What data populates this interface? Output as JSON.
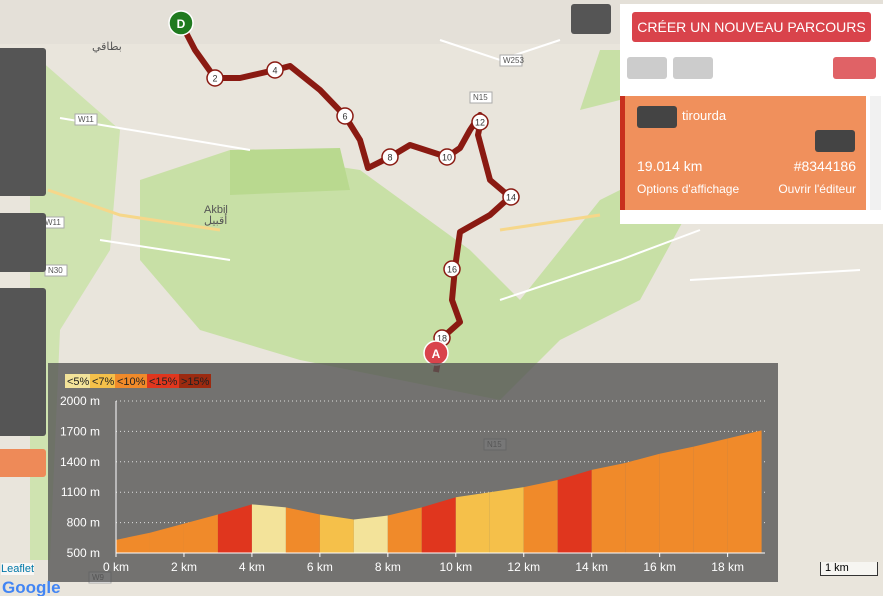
{
  "header": {
    "create_button": "CRÉER UN NOUVEAU PARCOURS"
  },
  "route_card": {
    "name": "tirourda",
    "distance": "19.014 km",
    "id": "#8344186",
    "options": "Options d'affichage",
    "editor": "Ouvrir l'éditeur"
  },
  "map": {
    "start": "D",
    "end": "A",
    "km_markers": [
      "2",
      "4",
      "6",
      "8",
      "10",
      "12",
      "14",
      "16",
      "18"
    ],
    "labels": [
      "Akbil",
      "أقبيل",
      "بطاقي",
      "W11",
      "W11",
      "N15",
      "N15",
      "W253",
      "N30",
      "W9"
    ],
    "scale": "1 km",
    "leaflet": "Leaflet",
    "google": "Google"
  },
  "chart_data": {
    "type": "area",
    "x": [
      0,
      1,
      2,
      3,
      4,
      5,
      6,
      7,
      8,
      9,
      10,
      11,
      12,
      13,
      14,
      15,
      16,
      17,
      18,
      19
    ],
    "values": [
      630,
      700,
      790,
      880,
      980,
      950,
      880,
      830,
      870,
      950,
      1050,
      1100,
      1150,
      1220,
      1320,
      1390,
      1480,
      1550,
      1630,
      1710
    ],
    "xlim": [
      0,
      19.1
    ],
    "ylim": [
      500,
      2000
    ],
    "xticks": [
      {
        "value": 0,
        "label": "0 km"
      },
      {
        "value": 2,
        "label": "2 km"
      },
      {
        "value": 4,
        "label": "4 km"
      },
      {
        "value": 6,
        "label": "6 km"
      },
      {
        "value": 8,
        "label": "8 km"
      },
      {
        "value": 10,
        "label": "10 km"
      },
      {
        "value": 12,
        "label": "12 km"
      },
      {
        "value": 14,
        "label": "14 km"
      },
      {
        "value": 16,
        "label": "16 km"
      },
      {
        "value": 18,
        "label": "18 km"
      }
    ],
    "yticks": [
      {
        "value": 500,
        "label": "500 m"
      },
      {
        "value": 800,
        "label": "800 m"
      },
      {
        "value": 1100,
        "label": "1100 m"
      },
      {
        "value": 1400,
        "label": "1400 m"
      },
      {
        "value": 1700,
        "label": "1700 m"
      },
      {
        "value": 2000,
        "label": "2000 m"
      }
    ],
    "grid": true,
    "slope_legend": [
      {
        "value": 5,
        "label": "<5%",
        "color": "#f3e39a"
      },
      {
        "value": 7,
        "label": "<7%",
        "color": "#f5c04a"
      },
      {
        "value": 10,
        "label": "<10%",
        "color": "#f08a2a"
      },
      {
        "value": 15,
        "label": "<15%",
        "color": "#e0361e"
      },
      {
        "value": 100,
        "label": ">15%",
        "color": "#9c2a10"
      }
    ]
  }
}
